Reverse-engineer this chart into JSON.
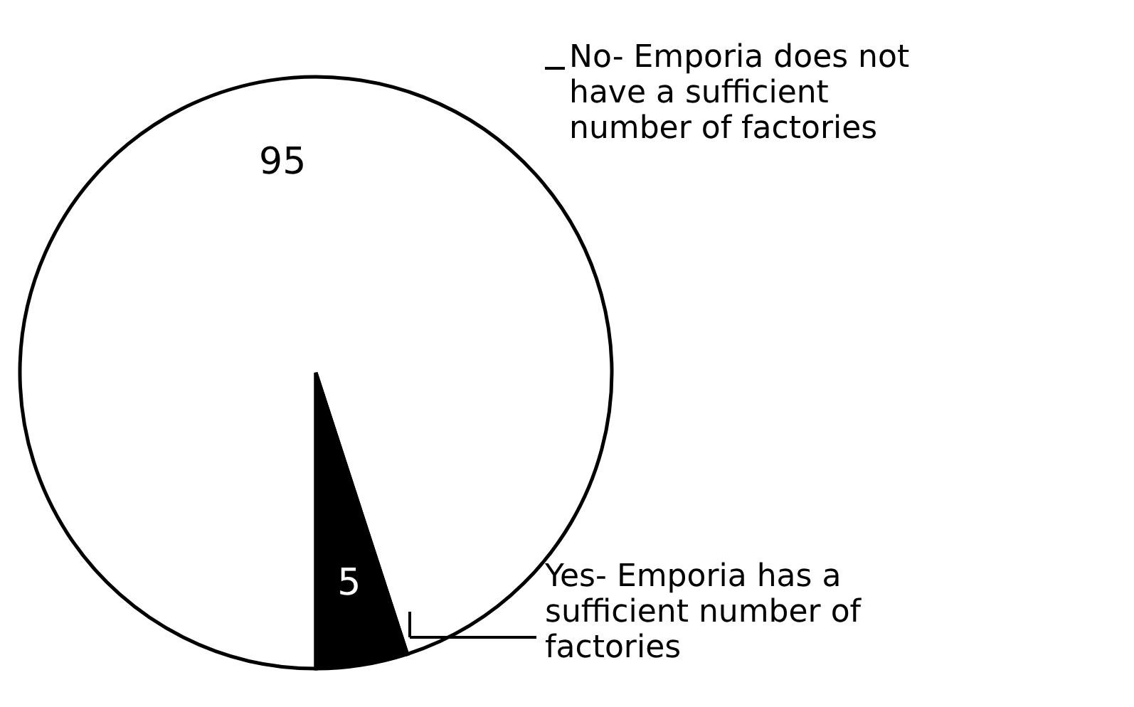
{
  "chart_data": {
    "type": "pie",
    "categories": [
      "No- Emporia does not have a sufficient number of factories",
      "Yes- Emporia has a sufficient number of factories"
    ],
    "values": [
      95,
      5
    ],
    "colors": [
      "#ffffff",
      "#000000"
    ],
    "data_labels": true,
    "legend": "right"
  }
}
